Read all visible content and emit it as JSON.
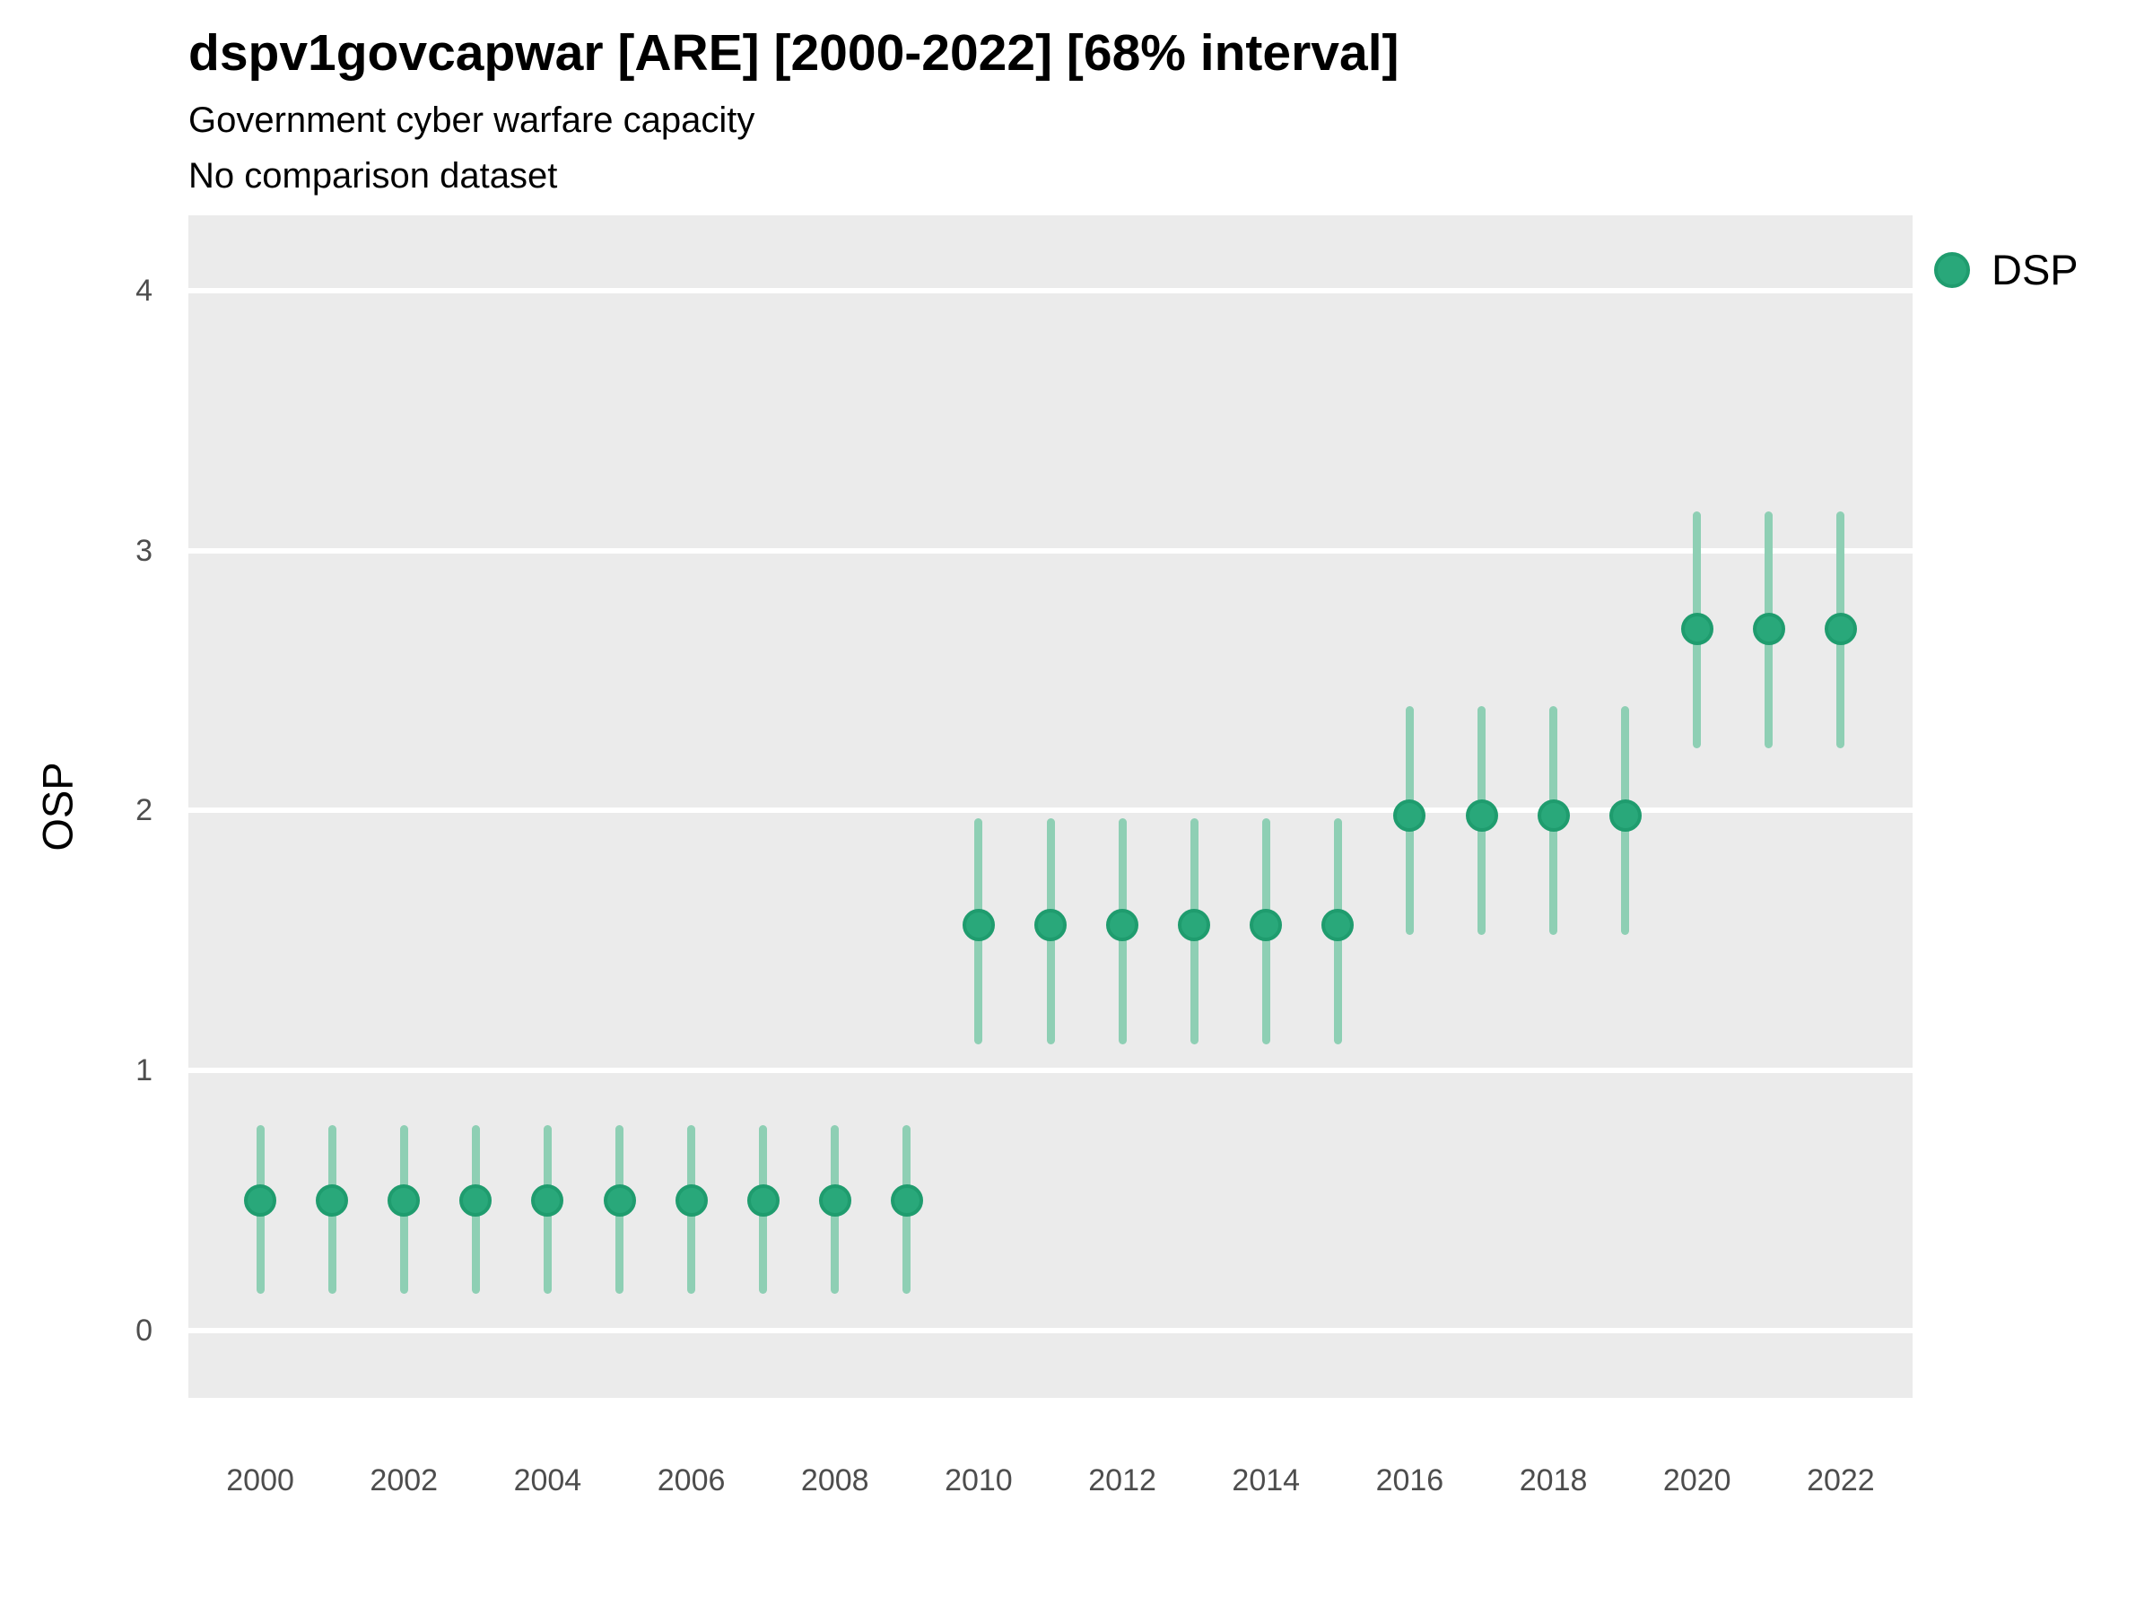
{
  "header": {
    "title": "dspv1govcapwar [ARE] [2000-2022] [68% interval]",
    "subtitle1": "Government cyber warfare capacity",
    "subtitle2": "No comparison dataset"
  },
  "legend": {
    "label": "DSP"
  },
  "colors": {
    "point": "#29a87a",
    "point_border": "#1f9c6e",
    "range_line": "#8ecfb4",
    "panel_bg": "#ebebeb",
    "grid": "#ffffff",
    "tick_text": "#4d4d4d",
    "text": "#000000"
  },
  "axes": {
    "y_title": "OSP",
    "y_ticks": [
      0,
      1,
      2,
      3,
      4
    ],
    "x_ticks": [
      2000,
      2002,
      2004,
      2006,
      2008,
      2010,
      2012,
      2014,
      2016,
      2018,
      2020,
      2022
    ],
    "xlim": [
      1999,
      2023
    ],
    "ylim": [
      -0.26,
      4.29
    ]
  },
  "chart_data": {
    "type": "scatter",
    "subtype": "pointrange",
    "title": "dspv1govcapwar [ARE] [2000-2022] [68% interval]",
    "subtitle": "Government cyber warfare capacity",
    "note": "No comparison dataset",
    "xlabel": "",
    "ylabel": "OSP",
    "interval": "68%",
    "legend_position": "right",
    "grid": "major-horizontal",
    "series": [
      {
        "name": "DSP",
        "points": [
          {
            "year": 2000,
            "value": 0.5,
            "lo": 0.14,
            "hi": 0.79
          },
          {
            "year": 2001,
            "value": 0.5,
            "lo": 0.14,
            "hi": 0.79
          },
          {
            "year": 2002,
            "value": 0.5,
            "lo": 0.14,
            "hi": 0.79
          },
          {
            "year": 2003,
            "value": 0.5,
            "lo": 0.14,
            "hi": 0.79
          },
          {
            "year": 2004,
            "value": 0.5,
            "lo": 0.14,
            "hi": 0.79
          },
          {
            "year": 2005,
            "value": 0.5,
            "lo": 0.14,
            "hi": 0.79
          },
          {
            "year": 2006,
            "value": 0.5,
            "lo": 0.14,
            "hi": 0.79
          },
          {
            "year": 2007,
            "value": 0.5,
            "lo": 0.14,
            "hi": 0.79
          },
          {
            "year": 2008,
            "value": 0.5,
            "lo": 0.14,
            "hi": 0.79
          },
          {
            "year": 2009,
            "value": 0.5,
            "lo": 0.14,
            "hi": 0.79
          },
          {
            "year": 2010,
            "value": 1.56,
            "lo": 1.1,
            "hi": 1.97
          },
          {
            "year": 2011,
            "value": 1.56,
            "lo": 1.1,
            "hi": 1.97
          },
          {
            "year": 2012,
            "value": 1.56,
            "lo": 1.1,
            "hi": 1.97
          },
          {
            "year": 2013,
            "value": 1.56,
            "lo": 1.1,
            "hi": 1.97
          },
          {
            "year": 2014,
            "value": 1.56,
            "lo": 1.1,
            "hi": 1.97
          },
          {
            "year": 2015,
            "value": 1.56,
            "lo": 1.1,
            "hi": 1.97
          },
          {
            "year": 2016,
            "value": 1.98,
            "lo": 1.52,
            "hi": 2.4
          },
          {
            "year": 2017,
            "value": 1.98,
            "lo": 1.52,
            "hi": 2.4
          },
          {
            "year": 2018,
            "value": 1.98,
            "lo": 1.52,
            "hi": 2.4
          },
          {
            "year": 2019,
            "value": 1.98,
            "lo": 1.52,
            "hi": 2.4
          },
          {
            "year": 2020,
            "value": 2.7,
            "lo": 2.24,
            "hi": 3.15
          },
          {
            "year": 2021,
            "value": 2.7,
            "lo": 2.24,
            "hi": 3.15
          },
          {
            "year": 2022,
            "value": 2.7,
            "lo": 2.24,
            "hi": 3.15
          }
        ]
      }
    ]
  }
}
